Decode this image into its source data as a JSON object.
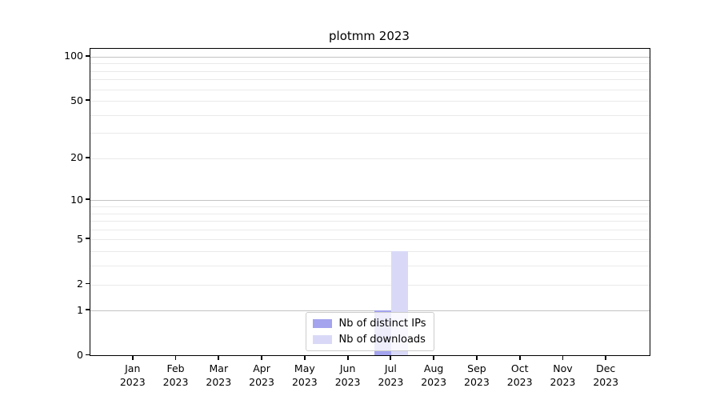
{
  "chart_data": {
    "type": "bar",
    "title": "plotmm 2023",
    "categories": [
      "Jan",
      "Feb",
      "Mar",
      "Apr",
      "May",
      "Jun",
      "Jul",
      "Aug",
      "Sep",
      "Oct",
      "Nov",
      "Dec"
    ],
    "year_label": "2023",
    "series": [
      {
        "name": "Nb of distinct IPs",
        "color": "#a3a3ee",
        "values": [
          0,
          0,
          0,
          0,
          0,
          0,
          1,
          0,
          0,
          0,
          0,
          0
        ]
      },
      {
        "name": "Nb of downloads",
        "color": "#d9d9f7",
        "values": [
          0,
          0,
          0,
          0,
          0,
          0,
          4,
          0,
          0,
          0,
          0,
          0
        ]
      }
    ],
    "xlabel": "",
    "ylabel": "",
    "yticks": [
      0,
      1,
      2,
      5,
      10,
      20,
      50,
      100
    ],
    "ylim": [
      0,
      112.8
    ],
    "scale": "log1p",
    "grid": {
      "major": [
        1,
        10,
        100
      ],
      "minor": [
        2,
        3,
        4,
        5,
        6,
        7,
        8,
        9,
        20,
        30,
        40,
        50,
        60,
        70,
        80,
        90
      ]
    },
    "grid_major_color": "#c3c3c3",
    "grid_minor_color": "#eaeaea",
    "axis_color": "#000000",
    "legend_position": "lower center"
  }
}
